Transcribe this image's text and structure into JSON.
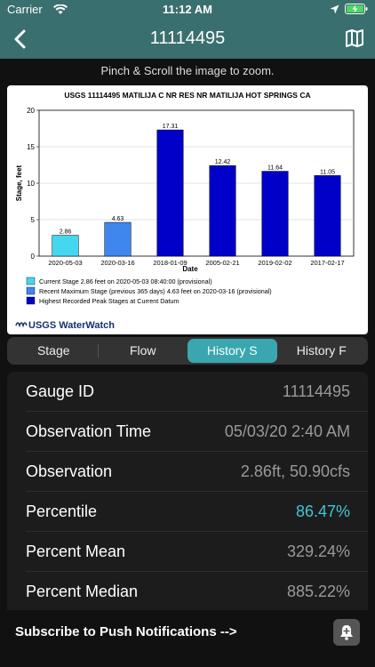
{
  "status": {
    "carrier": "Carrier",
    "time": "11:12 AM"
  },
  "nav": {
    "title": "11114495"
  },
  "hint": "Pinch & Scroll the image to zoom.",
  "chart_data": {
    "type": "bar",
    "title": "USGS 11114495 MATILIJA C NR RES NR MATILIJA HOT SPRINGS CA",
    "xlabel": "Date",
    "ylabel": "Stage, feet",
    "ylim": [
      0,
      20
    ],
    "yticks": [
      "0",
      "5",
      "10",
      "15",
      "20"
    ],
    "categories": [
      "2020-05-03",
      "2020-03-16",
      "2018-01-09",
      "2005-02-21",
      "2019-02-02",
      "2017-02-17"
    ],
    "values": [
      2.86,
      4.63,
      17.31,
      12.42,
      11.64,
      11.05
    ],
    "value_labels": [
      "2.86",
      "4.63",
      "17.31",
      "12.42",
      "11.64",
      "11.05"
    ],
    "bar_series": [
      0,
      1,
      2,
      2,
      2,
      2
    ],
    "series": [
      {
        "name": "Current Stage 2.86 feet on 2020-05-03 08:40:00 (provisional)",
        "color": "#44d7ef"
      },
      {
        "name": "Recent Maximum Stage (previous 365 days) 4.63 feet on 2020-03-16 (provisional)",
        "color": "#3f86ee"
      },
      {
        "name": "Highest Recorded Peak Stages at Current Datum",
        "color": "#0000c8"
      }
    ],
    "grid": true,
    "legend": "bottom-left",
    "brand": "USGS WaterWatch"
  },
  "tabs": [
    "Stage",
    "Flow",
    "History S",
    "History F"
  ],
  "active_tab": "History S",
  "rows": [
    {
      "label": "Gauge ID",
      "value": "11114495"
    },
    {
      "label": "Observation Time",
      "value": "05/03/20 2:40 AM"
    },
    {
      "label": "Observation",
      "value": "2.86ft, 50.90cfs"
    },
    {
      "label": "Percentile",
      "value": "86.47%",
      "highlight": "#3fc6d4"
    },
    {
      "label": "Percent Mean",
      "value": "329.24%"
    },
    {
      "label": "Percent Median",
      "value": "885.22%"
    }
  ],
  "footer": {
    "subscribe": "Subscribe to Push Notifications -->"
  },
  "icons": {
    "wifi": "wifi-icon",
    "location": "location-arrow-icon",
    "battery": "battery-charging-icon",
    "back": "chevron-left-icon",
    "map": "map-icon",
    "bell": "bell-add-icon"
  }
}
